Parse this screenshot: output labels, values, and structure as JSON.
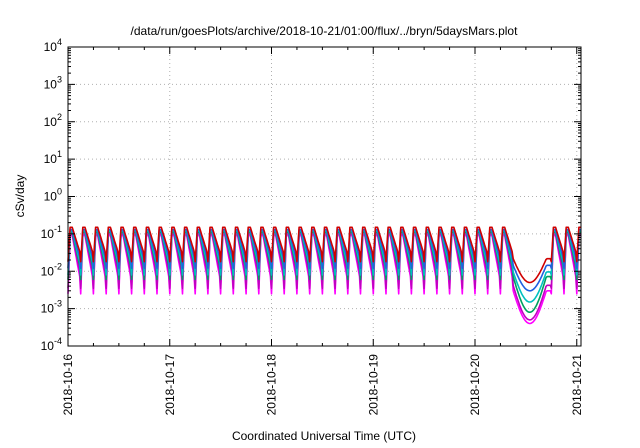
{
  "chart_data": {
    "type": "line",
    "title": "/data/run/goesPlots/archive/2018-10-21/01:00/flux/../bryn/5daysMars.plot",
    "xlabel": "Coordinated Universal Time (UTC)",
    "ylabel": "cSv/day",
    "yscale": "log",
    "ylim": [
      0.0001,
      10000
    ],
    "y_ticks": [
      {
        "base": "10",
        "exp": "-4"
      },
      {
        "base": "10",
        "exp": "-3"
      },
      {
        "base": "10",
        "exp": "-2"
      },
      {
        "base": "10",
        "exp": "-1"
      },
      {
        "base": "10",
        "exp": "0"
      },
      {
        "base": "10",
        "exp": "1"
      },
      {
        "base": "10",
        "exp": "2"
      },
      {
        "base": "10",
        "exp": "3"
      },
      {
        "base": "10",
        "exp": "4"
      }
    ],
    "xlim": [
      "2018-10-16",
      "2018-10-21 01:00"
    ],
    "x_ticks": [
      "2018-10-16",
      "2018-10-17",
      "2018-10-18",
      "2018-10-19",
      "2018-10-20",
      "2018-10-21"
    ],
    "grid": true,
    "pattern": {
      "period_hours": 3,
      "peak_offset_hours": 0.5,
      "gap_start_hours": 105,
      "gap_end_hours": 114
    },
    "series": [
      {
        "color": "#ff00ff",
        "peak": 0.09,
        "trough": 0.0025,
        "gap_min": 0.0004
      },
      {
        "color": "#c000c0",
        "peak": 0.1,
        "trough": 0.0035,
        "gap_min": 0.0005
      },
      {
        "color": "#00a060",
        "peak": 0.11,
        "trough": 0.006,
        "gap_min": 0.0008
      },
      {
        "color": "#00c0c0",
        "peak": 0.12,
        "trough": 0.008,
        "gap_min": 0.0015
      },
      {
        "color": "#2060e0",
        "peak": 0.13,
        "trough": 0.012,
        "gap_min": 0.003
      },
      {
        "color": "#d00000",
        "peak": 0.15,
        "trough": 0.018,
        "gap_min": 0.005
      }
    ]
  }
}
